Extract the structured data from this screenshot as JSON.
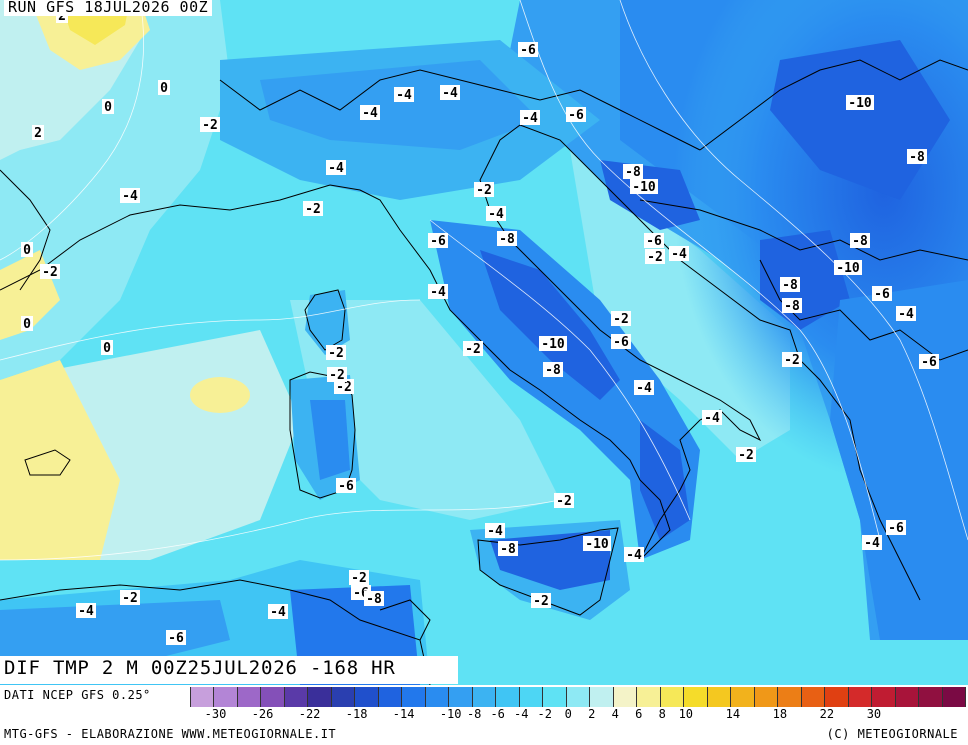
{
  "header": {
    "run": "RUN GFS 18JUL2026 00Z"
  },
  "footer": {
    "title": "DIF TMP 2 M 00Z25JUL2026 -168 HR",
    "source": "DATI NCEP GFS 0.25°",
    "credit": "MTG-GFS - ELABORAZIONE WWW.METEOGIORNALE.IT",
    "copyright": "(C) METEOGIORNALE"
  },
  "legend": {
    "colors": [
      "#c79fdc",
      "#b385d6",
      "#9d68c8",
      "#8450b8",
      "#5a3aa8",
      "#3a2f9a",
      "#2a3fb0",
      "#2050cc",
      "#1f63e0",
      "#2278ec",
      "#2a8cf0",
      "#349ff2",
      "#3cb3f2",
      "#40c5f4",
      "#4dd6f4",
      "#5fe2f4",
      "#8ee9f4",
      "#c0f0f0",
      "#f4f3c8",
      "#f7f096",
      "#f6e858",
      "#f5dc2a",
      "#f4c820",
      "#f2b21c",
      "#f09818",
      "#ec7e16",
      "#e86014",
      "#e04012",
      "#d42a2a",
      "#c01c32",
      "#a8143a",
      "#901040",
      "#7a0a44"
    ],
    "ticks": [
      "-30",
      "-26",
      "-22",
      "-18",
      "-14",
      "-10",
      "-8",
      "-6",
      "-4",
      "-2",
      "0",
      "2",
      "4",
      "6",
      "8",
      "10",
      "14",
      "18",
      "22",
      "30"
    ]
  },
  "contour_labels": [
    "2",
    "0",
    "0",
    "2",
    "-2",
    "-4",
    "0",
    "-2",
    "0",
    "0",
    "-2",
    "-4",
    "-4",
    "-4",
    "-6",
    "-4",
    "-6",
    "-10",
    "-8",
    "-4",
    "-2",
    "-2",
    "-4",
    "-6",
    "-8",
    "-8",
    "-10",
    "-6",
    "-2",
    "-4",
    "-8",
    "-10",
    "-8",
    "-8",
    "-6",
    "-4",
    "-4",
    "-2",
    "-2",
    "-6",
    "-10",
    "-2",
    "-6",
    "-8",
    "-4",
    "-2",
    "-2",
    "-4",
    "-2",
    "-6",
    "-2",
    "-4",
    "-8",
    "-10",
    "-4",
    "-6",
    "-4",
    "-2",
    "-2",
    "-6",
    "-8",
    "-4",
    "-2",
    "-4",
    "-6"
  ]
}
